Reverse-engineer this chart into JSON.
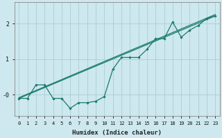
{
  "xlabel": "Humidex (Indice chaleur)",
  "bg_color": "#cde8ee",
  "grid_color": "#aacdd6",
  "line_color": "#1a7a6e",
  "xlim": [
    -0.5,
    23.5
  ],
  "ylim": [
    -0.6,
    2.6
  ],
  "yticks": [
    0,
    1,
    2
  ],
  "ytick_labels": [
    "-0",
    "1",
    "2"
  ],
  "xticks": [
    0,
    1,
    2,
    3,
    4,
    5,
    6,
    7,
    8,
    9,
    10,
    11,
    12,
    13,
    14,
    15,
    16,
    17,
    18,
    19,
    20,
    21,
    22,
    23
  ],
  "data_x": [
    0,
    1,
    2,
    3,
    4,
    5,
    6,
    7,
    8,
    9,
    10,
    11,
    12,
    13,
    14,
    15,
    16,
    17,
    18,
    19,
    20,
    21,
    22,
    23
  ],
  "data_y": [
    -0.1,
    -0.1,
    0.28,
    0.28,
    -0.1,
    -0.1,
    -0.38,
    -0.22,
    -0.22,
    -0.18,
    -0.05,
    0.72,
    1.05,
    1.05,
    1.05,
    1.28,
    1.58,
    1.58,
    2.05,
    1.62,
    1.82,
    1.95,
    2.15,
    2.22
  ],
  "line2_x": [
    0,
    23
  ],
  "line2_y": [
    -0.1,
    2.22
  ],
  "line3_x": [
    0,
    5,
    23
  ],
  "line3_y": [
    -0.1,
    -0.1,
    2.22
  ]
}
